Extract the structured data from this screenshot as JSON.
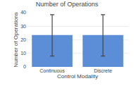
{
  "chart_data": {
    "type": "bar",
    "title": "Number of Operations",
    "xlabel": "Control Modality",
    "ylabel": "Number of Operations",
    "categories": [
      "Continuous",
      "Discrete"
    ],
    "values": [
      23.5,
      23.5
    ],
    "error_lower": [
      15.5,
      15.5
    ],
    "error_upper": [
      15.0,
      15.0
    ],
    "color": "#5B8ED6",
    "ylim": [
      0,
      40
    ],
    "yticks": [
      0,
      10,
      20,
      30,
      40
    ],
    "grid": true
  }
}
